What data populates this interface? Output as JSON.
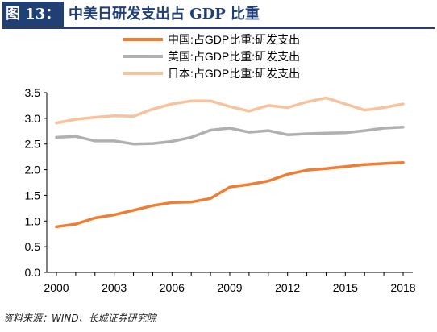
{
  "header": {
    "figure_label": "图 13：",
    "title": "中美日研发支出占 GDP 比重"
  },
  "source": "资料来源：WIND、长城证券研究院",
  "colors": {
    "china": "#ef7d32",
    "us": "#b0b0b0",
    "japan": "#f6c39d",
    "brand": "#1f3f75"
  },
  "chart_data": {
    "type": "line",
    "title": "",
    "xlabel": "",
    "ylabel": "",
    "x": [
      2000,
      2001,
      2002,
      2003,
      2004,
      2005,
      2006,
      2007,
      2008,
      2009,
      2010,
      2011,
      2012,
      2013,
      2014,
      2015,
      2016,
      2017,
      2018
    ],
    "xticks": [
      "2000",
      "2003",
      "2006",
      "2009",
      "2012",
      "2015",
      "2018"
    ],
    "yticks": [
      "0.0",
      "0.5",
      "1.0",
      "1.5",
      "2.0",
      "2.5",
      "3.0",
      "3.5"
    ],
    "ylim": [
      0,
      3.5
    ],
    "legend_position": "top-center",
    "grid": false,
    "series": [
      {
        "name": "中国:占GDP比重:研发支出",
        "color_key": "china",
        "values": [
          0.89,
          0.94,
          1.06,
          1.12,
          1.21,
          1.3,
          1.36,
          1.37,
          1.44,
          1.66,
          1.71,
          1.78,
          1.91,
          1.99,
          2.02,
          2.06,
          2.1,
          2.12,
          2.14
        ]
      },
      {
        "name": "美国:占GDP比重:研发支出",
        "color_key": "us",
        "values": [
          2.63,
          2.65,
          2.56,
          2.56,
          2.5,
          2.51,
          2.55,
          2.63,
          2.77,
          2.81,
          2.73,
          2.76,
          2.68,
          2.7,
          2.71,
          2.72,
          2.76,
          2.81,
          2.83
        ]
      },
      {
        "name": "日本:占GDP比重:研发支出",
        "color_key": "japan",
        "values": [
          2.91,
          2.98,
          3.02,
          3.05,
          3.04,
          3.18,
          3.28,
          3.34,
          3.34,
          3.23,
          3.14,
          3.25,
          3.21,
          3.32,
          3.4,
          3.28,
          3.16,
          3.21,
          3.28
        ]
      }
    ]
  }
}
